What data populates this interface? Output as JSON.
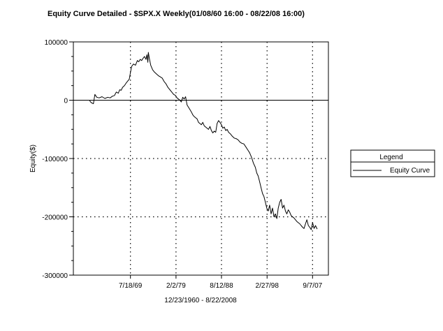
{
  "chart_data": {
    "type": "line",
    "title": "Equity Curve Detailed - $SPX.X Weekly(01/08/60 16:00 - 08/22/08 16:00)",
    "xlabel": "12/23/1960 - 8/22/2008",
    "ylabel": "Equity($)",
    "ylim": [
      -300000,
      100000
    ],
    "xlim": [
      1957.6,
      2011.0
    ],
    "x_tick_labels": [
      "7/18/69",
      "2/2/79",
      "8/12/88",
      "2/27/98",
      "9/7/07"
    ],
    "x_tick_positions": [
      1969.55,
      1979.09,
      1988.61,
      1998.16,
      2007.68
    ],
    "y_tick_labels": [
      "100000",
      "0",
      "-100000",
      "-200000",
      "-300000"
    ],
    "y_tick_values": [
      100000,
      0,
      -100000,
      -200000,
      -300000
    ],
    "grid": "dotted at labeled ticks",
    "legend_position": "right",
    "legend": {
      "title": "Legend",
      "entries": [
        "Equity Curve"
      ]
    },
    "series": [
      {
        "name": "Equity Curve",
        "x": [
          1960.98,
          1961.2,
          1961.5,
          1961.8,
          1962.1,
          1962.5,
          1963.0,
          1963.6,
          1964.2,
          1964.8,
          1965.3,
          1965.8,
          1966.2,
          1966.6,
          1967.0,
          1967.3,
          1967.6,
          1967.9,
          1968.3,
          1968.7,
          1969.0,
          1969.3,
          1969.5,
          1969.8,
          1970.2,
          1970.6,
          1971.0,
          1971.3,
          1971.6,
          1971.9,
          1972.2,
          1972.5,
          1972.8,
          1973.0,
          1973.2,
          1973.3,
          1973.5,
          1973.8,
          1974.2,
          1974.6,
          1975.0,
          1975.4,
          1975.8,
          1976.2,
          1976.6,
          1977.0,
          1977.4,
          1977.8,
          1978.2,
          1978.6,
          1979.0,
          1979.3,
          1979.6,
          1979.9,
          1980.2,
          1980.5,
          1980.8,
          1981.1,
          1981.4,
          1981.7,
          1982.0,
          1982.3,
          1982.6,
          1982.9,
          1983.2,
          1983.5,
          1983.8,
          1984.1,
          1984.4,
          1984.7,
          1985.0,
          1985.3,
          1985.6,
          1985.9,
          1986.2,
          1986.5,
          1986.8,
          1987.1,
          1987.4,
          1987.7,
          1988.0,
          1988.3,
          1988.6,
          1988.9,
          1989.2,
          1989.5,
          1989.8,
          1990.1,
          1990.5,
          1990.9,
          1991.3,
          1991.7,
          1992.1,
          1992.5,
          1992.9,
          1993.3,
          1993.7,
          1994.1,
          1994.5,
          1994.9,
          1995.3,
          1995.7,
          1996.0,
          1996.3,
          1996.6,
          1996.9,
          1997.2,
          1997.5,
          1997.8,
          1998.1,
          1998.4,
          1998.7,
          1999.0,
          1999.3,
          1999.6,
          1999.9,
          2000.2,
          2000.5,
          2000.8,
          2001.1,
          2001.4,
          2001.7,
          2002.0,
          2002.3,
          2002.6,
          2002.9,
          2003.2,
          2003.5,
          2003.8,
          2004.1,
          2004.4,
          2004.7,
          2005.0,
          2005.3,
          2005.6,
          2005.9,
          2006.2,
          2006.5,
          2006.8,
          2007.1,
          2007.4,
          2007.7,
          2008.0,
          2008.3,
          2008.64
        ],
        "values": [
          0,
          -3000,
          -5000,
          -6000,
          10000,
          5000,
          4000,
          6000,
          3000,
          5000,
          4000,
          7000,
          8000,
          14000,
          12000,
          18000,
          17000,
          22000,
          25000,
          30000,
          33000,
          36000,
          45000,
          58000,
          62000,
          60000,
          68000,
          66000,
          70000,
          68000,
          72000,
          75000,
          70000,
          78000,
          65000,
          82000,
          72000,
          60000,
          52000,
          48000,
          45000,
          42000,
          40000,
          38000,
          32000,
          28000,
          22000,
          18000,
          14000,
          10000,
          8000,
          4000,
          2000,
          0,
          -3000,
          5000,
          2000,
          6000,
          -8000,
          -12000,
          -16000,
          -20000,
          -25000,
          -28000,
          -30000,
          -32000,
          -38000,
          -40000,
          -42000,
          -38000,
          -44000,
          -46000,
          -48000,
          -50000,
          -45000,
          -52000,
          -56000,
          -53000,
          -55000,
          -40000,
          -35000,
          -38000,
          -42000,
          -48000,
          -46000,
          -52000,
          -50000,
          -55000,
          -58000,
          -62000,
          -65000,
          -66000,
          -68000,
          -72000,
          -74000,
          -75000,
          -80000,
          -85000,
          -90000,
          -98000,
          -108000,
          -115000,
          -125000,
          -130000,
          -140000,
          -150000,
          -160000,
          -165000,
          -175000,
          -185000,
          -190000,
          -180000,
          -195000,
          -185000,
          -200000,
          -195000,
          -203000,
          -185000,
          -175000,
          -170000,
          -185000,
          -180000,
          -190000,
          -195000,
          -188000,
          -192000,
          -198000,
          -200000,
          -202000,
          -205000,
          -208000,
          -210000,
          -212000,
          -215000,
          -218000,
          -220000,
          -212000,
          -205000,
          -215000,
          -218000,
          -222000,
          -210000,
          -220000,
          -215000,
          -221000
        ]
      }
    ]
  }
}
